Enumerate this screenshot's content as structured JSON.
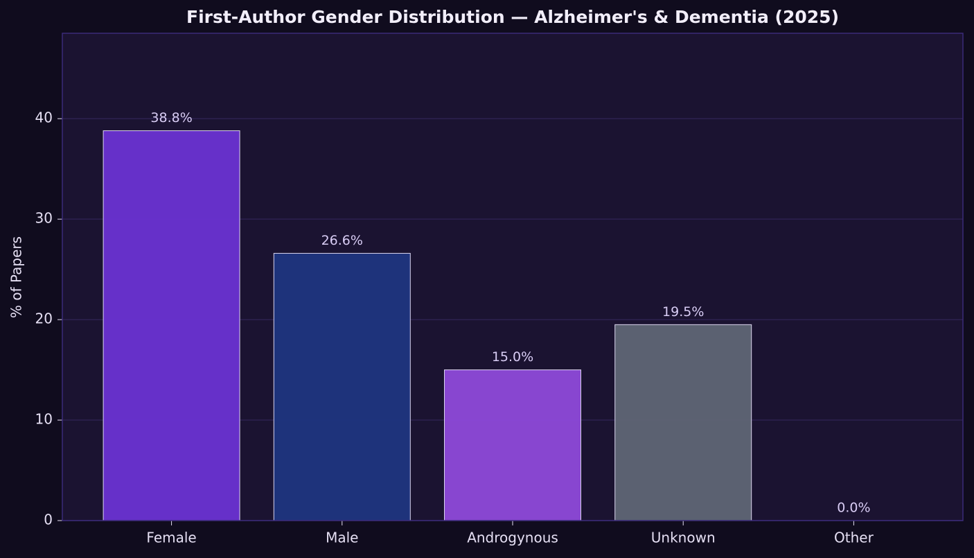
{
  "chart_data": {
    "type": "bar",
    "title": "First-Author Gender Distribution — Alzheimer's & Dementia (2025)",
    "y_label": "% of Papers",
    "categories": [
      "Female",
      "Male",
      "Androgynous",
      "Unknown",
      "Other"
    ],
    "values": [
      38.8,
      26.6,
      15.0,
      19.5,
      0.0
    ],
    "value_labels": [
      "38.8%",
      "26.6%",
      "15.0%",
      "19.5%",
      "0.0%"
    ],
    "colors": [
      "#6a31d2",
      "#1f3580",
      "#8e49d9",
      "#5f6575",
      "#4a8f86"
    ],
    "ylim": [
      0,
      48.5
    ],
    "yticks": [
      0,
      10,
      20,
      30,
      40
    ],
    "grid": true
  }
}
